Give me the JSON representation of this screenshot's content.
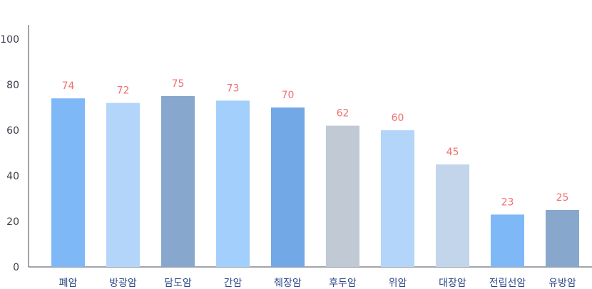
{
  "chart_data": {
    "type": "bar",
    "categories": [
      "폐암",
      "방광암",
      "담도암",
      "간암",
      "췌장암",
      "후두암",
      "위암",
      "대장암",
      "전립선암",
      "유방암"
    ],
    "values": [
      74,
      72,
      75,
      73,
      70,
      62,
      60,
      45,
      23,
      25
    ],
    "data_labels": [
      "74",
      "72",
      "75",
      "73",
      "70",
      "62",
      "60",
      "45",
      "23",
      "25"
    ],
    "yticks": [
      "0",
      "20",
      "40",
      "60",
      "80",
      "100"
    ],
    "ylim": [
      0,
      100
    ],
    "bar_colors": [
      "#7fb8f7",
      "#b3d5fa",
      "#87a8cc",
      "#a3cffd",
      "#72a8e6",
      "#c0c9d4",
      "#b3d5fa",
      "#c2d5ea",
      "#7fb8f7",
      "#87a8cc"
    ],
    "data_label_color": "#f07070",
    "grid": false,
    "legend": "none"
  }
}
